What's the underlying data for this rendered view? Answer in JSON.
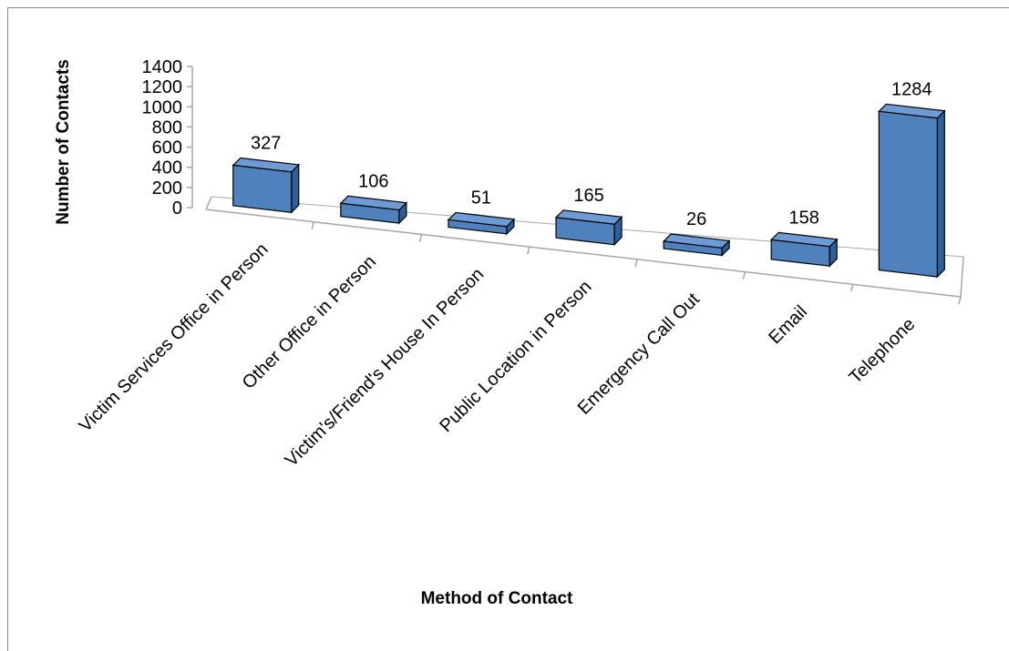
{
  "chart_data": {
    "type": "bar",
    "title": "",
    "xlabel": "Method of Contact",
    "ylabel": "Number of Contacts",
    "categories": [
      "Victim Services Office in Person",
      "Other Office in Person",
      "Victim's/Friend's House In Person",
      "Public Location in Person",
      "Emergency Call Out",
      "Email",
      "Telephone"
    ],
    "values": [
      327,
      106,
      51,
      165,
      26,
      158,
      1284
    ],
    "ylim": [
      0,
      1400
    ],
    "yticks": [
      "0",
      "200",
      "400",
      "600",
      "800",
      "1000",
      "1200",
      "1400"
    ],
    "data_labels": [
      "327",
      "106",
      "51",
      "165",
      "26",
      "158",
      "1284"
    ],
    "grid": false,
    "legend": "none",
    "bar_style": "3d",
    "colors": {
      "bar_front": "#4f81bd",
      "bar_top": "#6e9bd4",
      "bar_side": "#2f5f98",
      "bar_edge": "#000000",
      "axis": "#a6a6a6"
    }
  }
}
